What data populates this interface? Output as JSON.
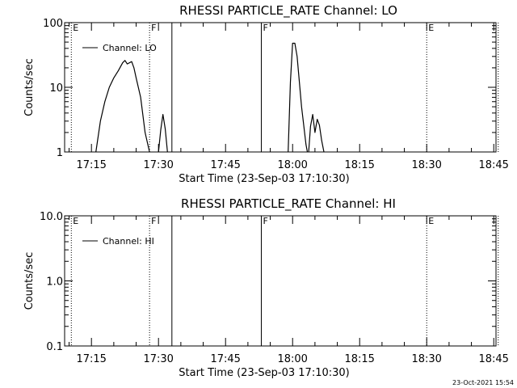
{
  "timestamp": "23-Oct-2021 15:54",
  "chart_data": [
    {
      "type": "line",
      "title": "RHESSI PARTICLE_RATE Channel: LO",
      "xlabel": "Start Time (23-Sep-03 17:10:30)",
      "ylabel": "Counts/sec",
      "yscale": "log",
      "ylim": [
        1,
        100
      ],
      "xlim_minutes_after_start": [
        -1.5,
        95
      ],
      "x_ticks": [
        "17:15",
        "17:30",
        "17:45",
        "18:00",
        "18:15",
        "18:30",
        "18:45"
      ],
      "y_ticks": [
        "1",
        "10",
        "100"
      ],
      "legend": "Channel: LO",
      "legend_position": "top-left",
      "markers": [
        {
          "label": "E",
          "style": "dotted",
          "time": "17:10:30"
        },
        {
          "label": "F",
          "style": "dotted",
          "time": "17:28"
        },
        {
          "label": "",
          "style": "solid",
          "time": "17:33"
        },
        {
          "label": "F",
          "style": "solid",
          "time": "17:53"
        },
        {
          "label": "E",
          "style": "dotted",
          "time": "18:30"
        },
        {
          "label": "",
          "style": "dotted",
          "time": "18:46"
        }
      ],
      "series": [
        {
          "name": "Channel: LO",
          "segments": [
            {
              "x": [
                "17:16",
                "17:17",
                "17:18",
                "17:19",
                "17:20",
                "17:21",
                "17:22",
                "17:22.5",
                "17:23",
                "17:24",
                "17:24.5",
                "17:25",
                "17:26",
                "17:27",
                "17:28"
              ],
              "y": [
                1,
                3,
                6,
                10,
                14,
                18,
                24,
                26,
                23,
                25,
                20,
                14,
                7,
                2,
                1
              ]
            },
            {
              "x": [
                "17:30",
                "17:30.5",
                "17:31",
                "17:31.5",
                "17:32"
              ],
              "y": [
                1,
                2.2,
                3.8,
                2.3,
                1
              ]
            },
            {
              "x": [
                "17:59",
                "17:59.5",
                "18:00",
                "18:00.5",
                "18:01",
                "18:02",
                "18:03",
                "18:03.3"
              ],
              "y": [
                1,
                12,
                48,
                48,
                30,
                5,
                1.3,
                1
              ]
            },
            {
              "x": [
                "18:03.6",
                "18:04",
                "18:04.5",
                "18:05",
                "18:05.5",
                "18:06",
                "18:06.5",
                "18:07"
              ],
              "y": [
                1,
                2.5,
                3.8,
                2,
                3.2,
                2.6,
                1.5,
                1
              ]
            }
          ]
        }
      ]
    },
    {
      "type": "line",
      "title": "RHESSI PARTICLE_RATE Channel: HI",
      "xlabel": "Start Time (23-Sep-03 17:10:30)",
      "ylabel": "Counts/sec",
      "yscale": "log",
      "ylim": [
        0.1,
        10
      ],
      "xlim_minutes_after_start": [
        -1.5,
        95
      ],
      "x_ticks": [
        "17:15",
        "17:30",
        "17:45",
        "18:00",
        "18:15",
        "18:30",
        "18:45"
      ],
      "y_ticks": [
        "0.1",
        "1.0",
        "10.0"
      ],
      "legend": "Channel: HI",
      "legend_position": "top-left",
      "markers": [
        {
          "label": "E",
          "style": "dotted",
          "time": "17:10:30"
        },
        {
          "label": "F",
          "style": "dotted",
          "time": "17:28"
        },
        {
          "label": "",
          "style": "solid",
          "time": "17:33"
        },
        {
          "label": "F",
          "style": "solid",
          "time": "17:53"
        },
        {
          "label": "E",
          "style": "dotted",
          "time": "18:30"
        },
        {
          "label": "",
          "style": "dotted",
          "time": "18:46"
        }
      ],
      "series": [
        {
          "name": "Channel: HI",
          "segments": []
        }
      ]
    }
  ]
}
